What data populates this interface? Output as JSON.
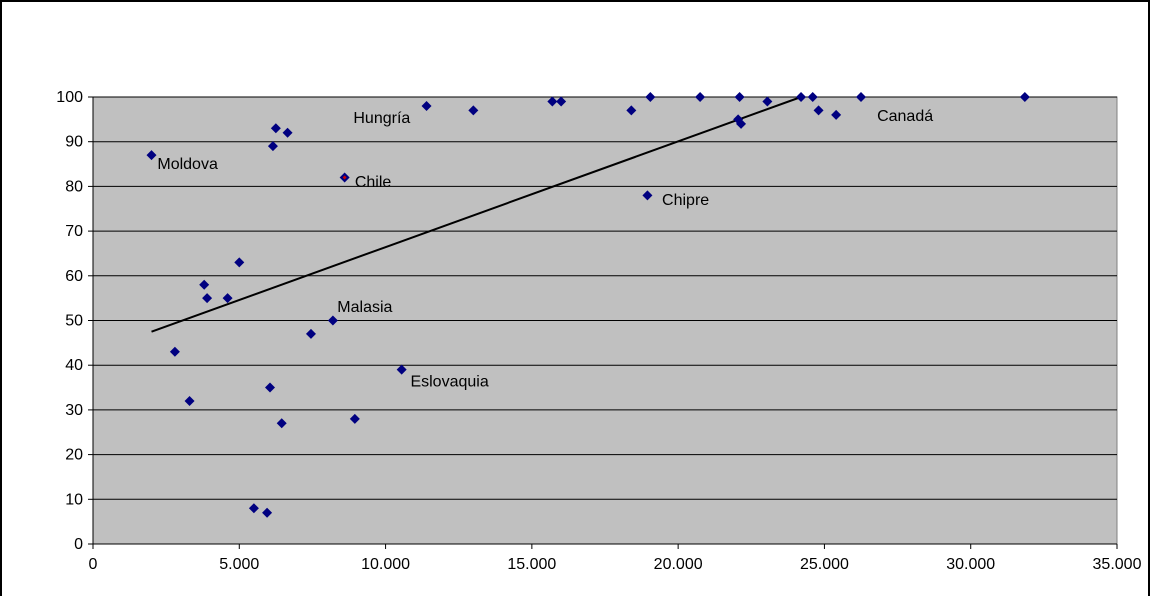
{
  "chart_data": {
    "type": "scatter",
    "title": "",
    "xlabel": "",
    "ylabel": "",
    "xlim": [
      0,
      35000
    ],
    "ylim": [
      0,
      100
    ],
    "x_ticks": [
      0,
      5000,
      10000,
      15000,
      20000,
      25000,
      30000,
      35000
    ],
    "x_tick_labels": [
      "0",
      "5.000",
      "10.000",
      "15.000",
      "20.000",
      "25.000",
      "30.000",
      "35.000"
    ],
    "y_ticks": [
      0,
      10,
      20,
      30,
      40,
      50,
      60,
      70,
      80,
      90,
      100
    ],
    "y_tick_labels": [
      "0",
      "10",
      "20",
      "30",
      "40",
      "50",
      "60",
      "70",
      "80",
      "90",
      "100"
    ],
    "grid": "horizontal",
    "plot_background": "#c0c0c0",
    "marker_color": "#000080",
    "highlight_color": "#cc0000",
    "points": [
      {
        "x": 2000,
        "y": 87,
        "label": "Moldova"
      },
      {
        "x": 2800,
        "y": 43
      },
      {
        "x": 3300,
        "y": 32
      },
      {
        "x": 3800,
        "y": 58
      },
      {
        "x": 3900,
        "y": 55
      },
      {
        "x": 4600,
        "y": 55
      },
      {
        "x": 5000,
        "y": 63
      },
      {
        "x": 5500,
        "y": 8
      },
      {
        "x": 5950,
        "y": 7
      },
      {
        "x": 6050,
        "y": 35
      },
      {
        "x": 6150,
        "y": 89
      },
      {
        "x": 6250,
        "y": 93
      },
      {
        "x": 6450,
        "y": 27
      },
      {
        "x": 6650,
        "y": 92
      },
      {
        "x": 7450,
        "y": 47
      },
      {
        "x": 8200,
        "y": 50,
        "label": "Malasia"
      },
      {
        "x": 8600,
        "y": 82,
        "label": "Chile",
        "highlight": true
      },
      {
        "x": 8950,
        "y": 28
      },
      {
        "x": 10550,
        "y": 39,
        "label": "Eslovaquia"
      },
      {
        "x": 11400,
        "y": 98,
        "label": "Hungría"
      },
      {
        "x": 13000,
        "y": 97
      },
      {
        "x": 15700,
        "y": 99
      },
      {
        "x": 16000,
        "y": 99
      },
      {
        "x": 18400,
        "y": 97
      },
      {
        "x": 18950,
        "y": 78,
        "label": "Chipre"
      },
      {
        "x": 19050,
        "y": 100
      },
      {
        "x": 20750,
        "y": 100
      },
      {
        "x": 22050,
        "y": 95
      },
      {
        "x": 22100,
        "y": 100
      },
      {
        "x": 22150,
        "y": 94
      },
      {
        "x": 23050,
        "y": 99
      },
      {
        "x": 24200,
        "y": 100
      },
      {
        "x": 24600,
        "y": 100
      },
      {
        "x": 24800,
        "y": 97
      },
      {
        "x": 25400,
        "y": 96
      },
      {
        "x": 26250,
        "y": 100,
        "label": "Canadá"
      },
      {
        "x": 31850,
        "y": 100
      }
    ],
    "trendline": [
      {
        "x": 2000,
        "y": 47.5
      },
      {
        "x": 24200,
        "y": 100
      }
    ],
    "annotations": [
      {
        "text": "Moldova",
        "x": 2200,
        "y": 85
      },
      {
        "text": "Hungría",
        "x": 8900,
        "y": 95.3
      },
      {
        "text": "Chile",
        "x": 8950,
        "y": 81
      },
      {
        "text": "Chipre",
        "x": 19450,
        "y": 77
      },
      {
        "text": "Malasia",
        "x": 8350,
        "y": 53
      },
      {
        "text": "Eslovaquia",
        "x": 10850,
        "y": 36.3
      },
      {
        "text": "Canadá",
        "x": 26800,
        "y": 95.8
      }
    ]
  }
}
